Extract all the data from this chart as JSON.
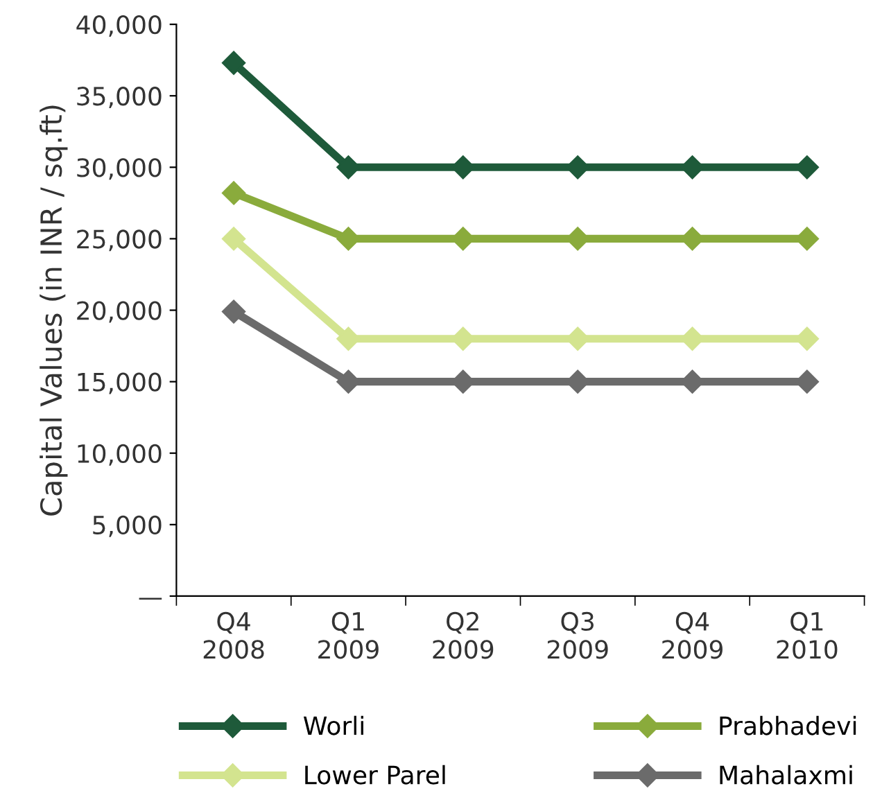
{
  "chart_data": {
    "type": "line",
    "ylabel": "Capital Values (in INR / sq.ft)",
    "categories": [
      "Q4\n2008",
      "Q1\n2009",
      "Q2\n2009",
      "Q3\n2009",
      "Q4\n2009",
      "Q1\n2010"
    ],
    "series": [
      {
        "name": "Worli",
        "color": "#1e5a3a",
        "values": [
          37300,
          30000,
          30000,
          30000,
          30000,
          30000
        ]
      },
      {
        "name": "Prabhadevi",
        "color": "#8aab3c",
        "values": [
          28200,
          25000,
          25000,
          25000,
          25000,
          25000
        ]
      },
      {
        "name": "Lower Parel",
        "color": "#d3e48f",
        "values": [
          25000,
          18000,
          18000,
          18000,
          18000,
          18000
        ]
      },
      {
        "name": "Mahalaxmi",
        "color": "#6b6b6b",
        "values": [
          19900,
          15000,
          15000,
          15000,
          15000,
          15000
        ]
      }
    ],
    "ylim": [
      0,
      40000
    ],
    "yticks": [
      {
        "value": 0,
        "label": "—"
      },
      {
        "value": 5000,
        "label": "5,000"
      },
      {
        "value": 10000,
        "label": "10,000"
      },
      {
        "value": 15000,
        "label": "15,000"
      },
      {
        "value": 20000,
        "label": "20,000"
      },
      {
        "value": 25000,
        "label": "25,000"
      },
      {
        "value": 30000,
        "label": "30,000"
      },
      {
        "value": 35000,
        "label": "35,000"
      },
      {
        "value": 40000,
        "label": "40,000"
      }
    ],
    "marker": "diamond",
    "line_style": "solid",
    "grid": false,
    "legend": "bottom"
  }
}
